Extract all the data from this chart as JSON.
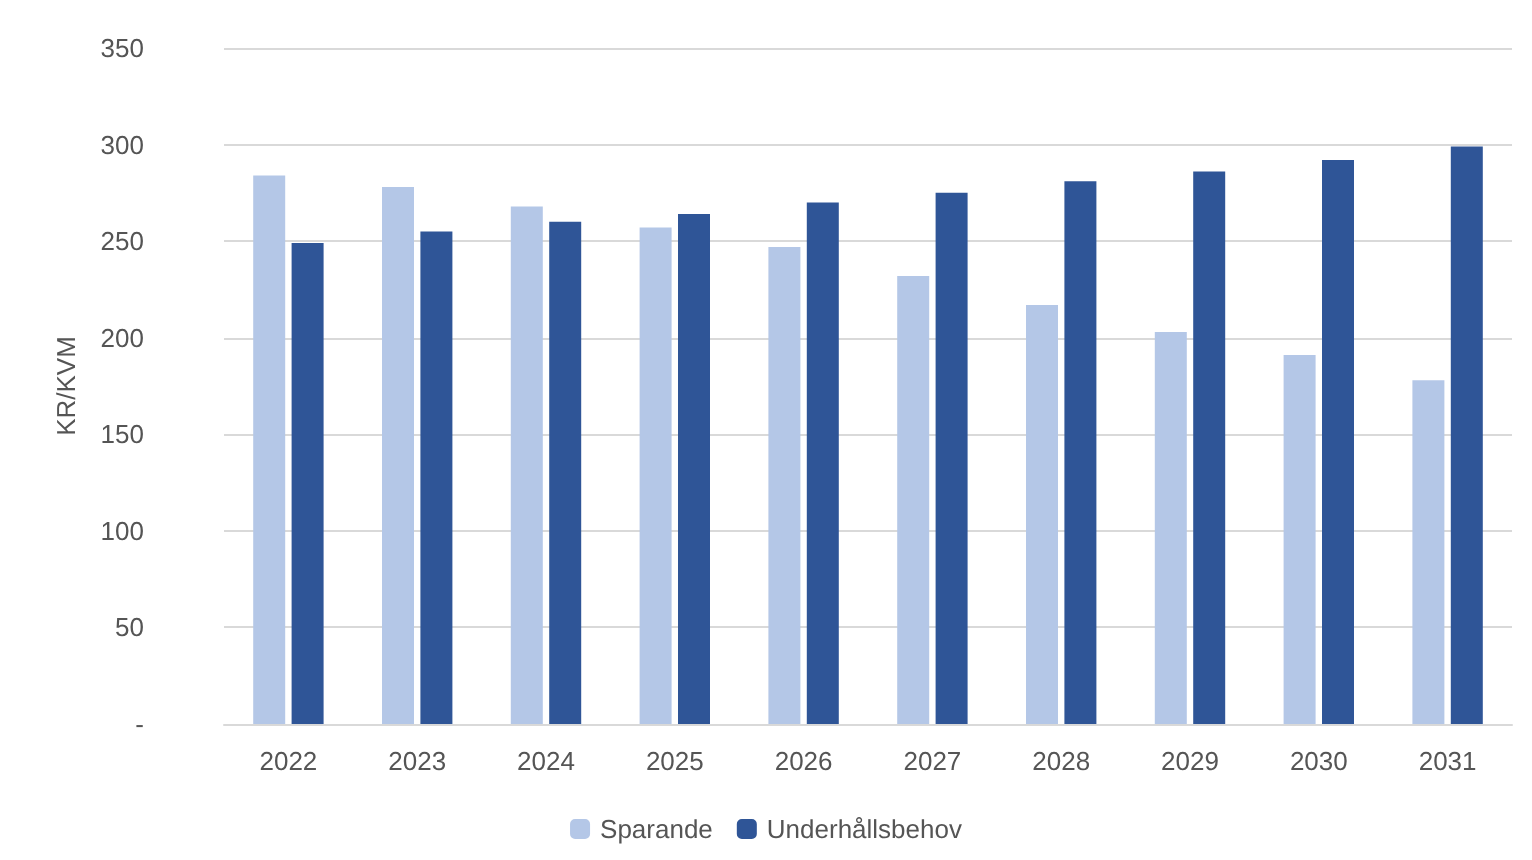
{
  "chart_data": {
    "type": "bar",
    "ylabel": "KR/KVM",
    "categories": [
      "2022",
      "2023",
      "2024",
      "2025",
      "2026",
      "2027",
      "2028",
      "2029",
      "2030",
      "2031"
    ],
    "series": [
      {
        "name": "Sparande",
        "color": "#b4c7e7",
        "values": [
          284,
          278,
          268,
          257,
          247,
          232,
          217,
          203,
          191,
          178
        ]
      },
      {
        "name": "Underhållsbehov",
        "color": "#2f5597",
        "values": [
          249,
          255,
          260,
          264,
          270,
          275,
          281,
          286,
          292,
          299
        ]
      }
    ],
    "ylim": [
      0,
      350
    ],
    "yticks": [
      {
        "value": 0,
        "label": "-"
      },
      50,
      100,
      150,
      200,
      250,
      300,
      350
    ],
    "grid": "y",
    "legend": "bottom"
  }
}
